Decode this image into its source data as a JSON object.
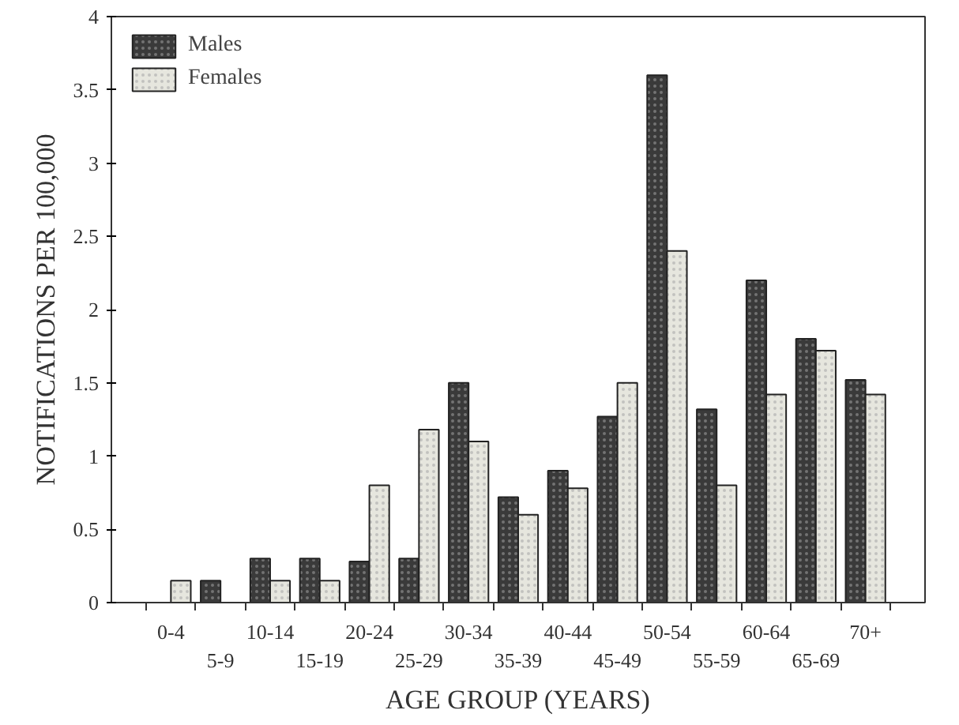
{
  "chart_data": {
    "type": "bar",
    "xlabel": "AGE GROUP (YEARS)",
    "ylabel": "NOTIFICATIONS PER 100,000",
    "categories": [
      "0-4",
      "5-9",
      "10-14",
      "15-19",
      "20-24",
      "25-29",
      "30-34",
      "35-39",
      "40-44",
      "45-49",
      "50-54",
      "55-59",
      "60-64",
      "65-69",
      "70+"
    ],
    "series": [
      {
        "name": "Males",
        "color": "#3a3a3a",
        "values": [
          null,
          0.15,
          0.3,
          0.3,
          0.28,
          0.3,
          1.5,
          0.72,
          0.9,
          1.27,
          3.6,
          1.32,
          2.2,
          1.8,
          1.52
        ]
      },
      {
        "name": "Females",
        "color": "#e6e6de",
        "values": [
          0.15,
          null,
          0.15,
          0.15,
          0.8,
          1.18,
          1.1,
          0.6,
          0.78,
          1.5,
          2.4,
          0.8,
          1.42,
          1.72,
          1.42
        ]
      }
    ],
    "ylim": [
      0,
      4
    ],
    "yticks": [
      0,
      0.5,
      1,
      1.5,
      2,
      2.5,
      3,
      3.5,
      4
    ],
    "grid": false,
    "legend": "top left"
  }
}
